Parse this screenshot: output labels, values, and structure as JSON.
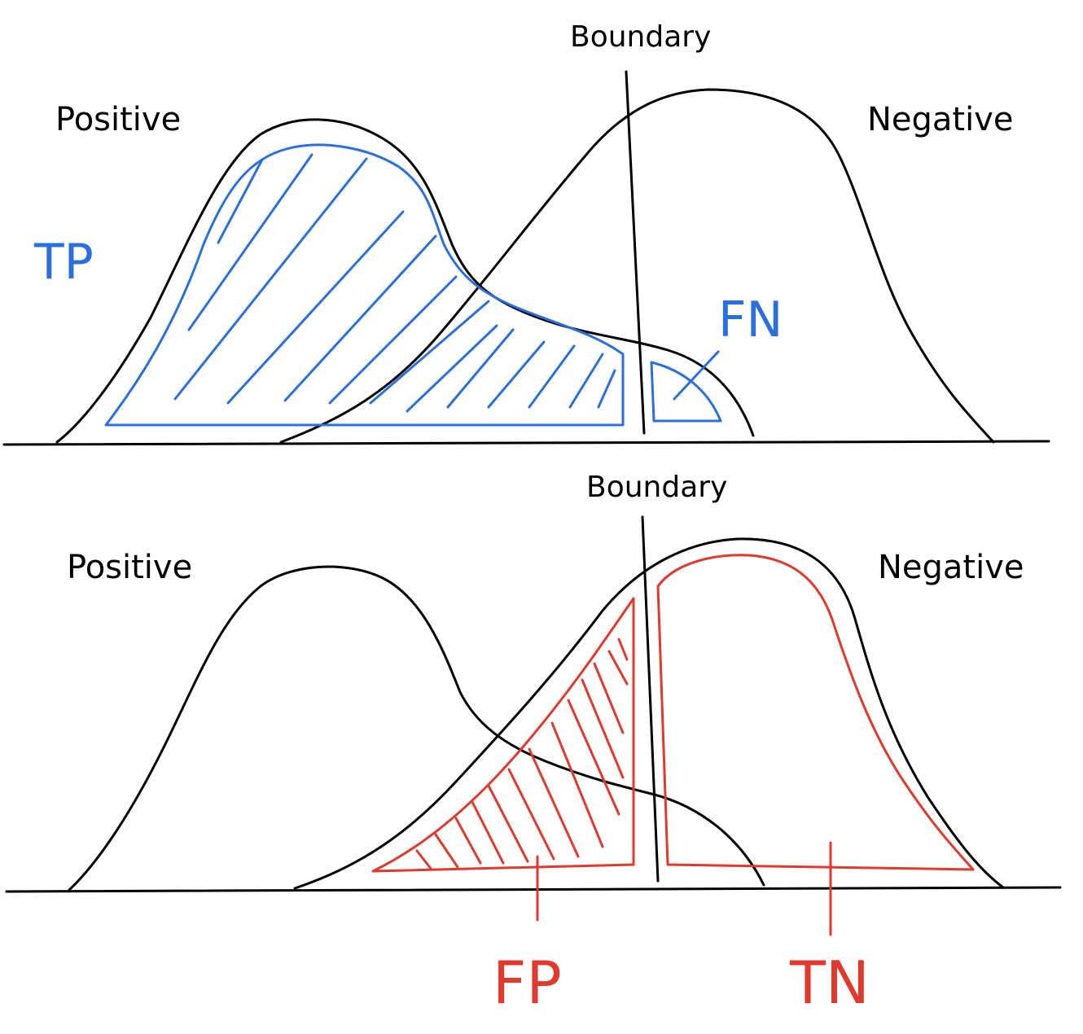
{
  "colors": {
    "ink": "#000000",
    "tp_fn": "#2a6fdb",
    "fp_tn": "#e03a2e",
    "background": "#ffffff"
  },
  "panels": [
    {
      "boundary_label": "Boundary",
      "positive_label": "Positive",
      "negative_label": "Negative",
      "highlighted_regions": [
        "TP",
        "FN"
      ],
      "region_labels": {
        "tp": "TP",
        "fn": "FN"
      }
    },
    {
      "boundary_label": "Boundary",
      "positive_label": "Positive",
      "negative_label": "Negative",
      "highlighted_regions": [
        "FP",
        "TN"
      ],
      "region_labels": {
        "fp": "FP",
        "tn": "TN"
      }
    }
  ]
}
